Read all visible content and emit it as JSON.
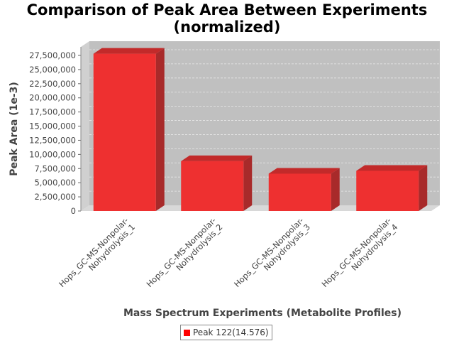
{
  "chart_data": {
    "type": "bar",
    "title": "Comparison of Peak Area Between Experiments",
    "subtitle": "(normalized)",
    "xlabel": "Mass Spectrum Experiments (Metabolite Profiles)",
    "ylabel": "Peak Area (1e-3)",
    "categories": [
      [
        "Hops_GC-MS-Nonpolar-",
        "Nohydrolysis_1"
      ],
      [
        "Hops_GC-MS-Nonpolar-",
        "Nohydrolysis_2"
      ],
      [
        "Hops_GC-MS-Nonpolar-",
        "Nohydrolysis_3"
      ],
      [
        "Hops_GC-MS-Nonpolar-",
        "Nohydrolysis_4"
      ]
    ],
    "series": [
      {
        "name": "Peak 122(14.576)",
        "values": [
          27800000,
          8800000,
          6600000,
          7100000
        ]
      }
    ],
    "ylim": [
      0,
      27500000
    ],
    "yticks": [
      {
        "value": 0,
        "label": "0"
      },
      {
        "value": 2500000,
        "label": "2,500,000"
      },
      {
        "value": 5000000,
        "label": "5,000,000"
      },
      {
        "value": 7500000,
        "label": "7,500,000"
      },
      {
        "value": 10000000,
        "label": "10,000,000"
      },
      {
        "value": 12500000,
        "label": "12,500,000"
      },
      {
        "value": 15000000,
        "label": "15,000,000"
      },
      {
        "value": 17500000,
        "label": "17,500,000"
      },
      {
        "value": 20000000,
        "label": "20,000,000"
      },
      {
        "value": 22500000,
        "label": "22,500,000"
      },
      {
        "value": 25000000,
        "label": "25,000,000"
      },
      {
        "value": 27500000,
        "label": "27,500,000"
      }
    ],
    "grid": true,
    "legend_position": "bottom",
    "colors": {
      "bar_front": "#ee3030",
      "bar_side": "#a82a2a",
      "bar_top": "#c22a2a",
      "plot_back": "#c0c0c0",
      "plot_floor": "#d8d8d8",
      "grid": "#e8e8e8"
    }
  }
}
